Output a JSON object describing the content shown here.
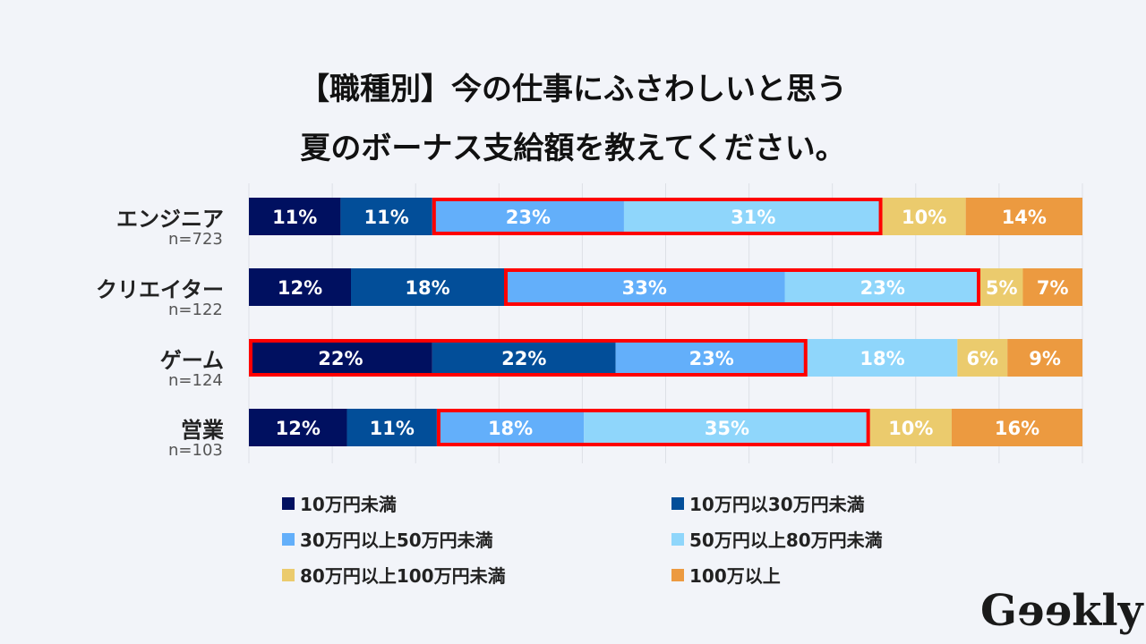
{
  "chart_data": {
    "type": "bar",
    "orientation": "horizontal",
    "stacked": "percent",
    "title": [
      "【職種別】今の仕事にふさわしいと思う",
      "夏のボーナス支給額を教えてください。"
    ],
    "categories": [
      "エンジニア",
      "クリエイター",
      "ゲーム",
      "営業"
    ],
    "sample_sizes": [
      "n=723",
      "n=122",
      "n=124",
      "n=103"
    ],
    "series": [
      {
        "name": "10万円未満",
        "color": "#001060",
        "values": [
          11,
          12,
          22,
          12
        ]
      },
      {
        "name": "10万円以30万円未満",
        "color": "#024e99",
        "values": [
          11,
          18,
          22,
          11
        ]
      },
      {
        "name": "30万円以上50万円未満",
        "color": "#63affa",
        "values": [
          23,
          33,
          23,
          18
        ]
      },
      {
        "name": "50万円以上80万円未満",
        "color": "#8fd6fb",
        "values": [
          31,
          23,
          18,
          35
        ]
      },
      {
        "name": "80万円以上100万円未満",
        "color": "#ebcb6d",
        "values": [
          10,
          5,
          6,
          10
        ]
      },
      {
        "name": "100万以上",
        "color": "#ec9a40",
        "values": [
          14,
          7,
          9,
          16
        ]
      }
    ],
    "highlights": [
      {
        "category": 0,
        "series": [
          2,
          3
        ]
      },
      {
        "category": 1,
        "series": [
          2,
          3
        ]
      },
      {
        "category": 2,
        "series": [
          0,
          1,
          2
        ]
      },
      {
        "category": 3,
        "series": [
          2,
          3
        ]
      }
    ],
    "highlight_color": "#ff0000",
    "grid": true,
    "legend": "bottom"
  },
  "logo": "Geekly"
}
